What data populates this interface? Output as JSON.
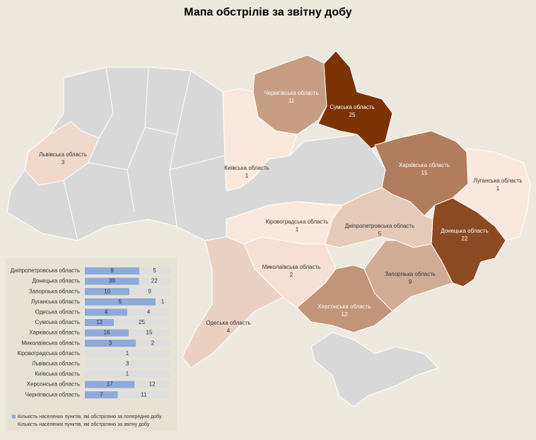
{
  "title": "Мапа обстрілів за звітну добу",
  "color_scale": [
    "#fbe8dc",
    "#7b3306"
  ],
  "regions": [
    {
      "name": "Чернігівська область",
      "value": 11
    },
    {
      "name": "Сумська область",
      "value": 25
    },
    {
      "name": "Харківська область",
      "value": 15
    },
    {
      "name": "Луганська область",
      "value": 1
    },
    {
      "name": "Донецька область",
      "value": 22
    },
    {
      "name": "Дніпропетровська область",
      "value": 5
    },
    {
      "name": "Запорізька область",
      "value": 9
    },
    {
      "name": "Херсонська область",
      "value": 12
    },
    {
      "name": "Миколаївська область",
      "value": 2
    },
    {
      "name": "Одеська область",
      "value": 4
    },
    {
      "name": "Кіровоградська область",
      "value": 1
    },
    {
      "name": "Київська область",
      "value": 1
    },
    {
      "name": "Львівська область",
      "value": 3
    }
  ],
  "chart_data": {
    "type": "bar",
    "orientation": "horizontal",
    "stacking": "percent",
    "categories": [
      "Дніпропетровська область",
      "Донецька область",
      "Запорізька область",
      "Луганська область",
      "Одеська область",
      "Сумська область",
      "Харківська область",
      "Миколаївська область",
      "Кіровоградська область",
      "Львівська область",
      "Київська область",
      "Херсонська область",
      "Чернігівська область"
    ],
    "series": [
      {
        "name": "Кількість населених пунктів, які обстріляно за попередню добу",
        "color": "#8ea9db",
        "values": [
          9,
          39,
          10,
          5,
          4,
          13,
          16,
          3,
          null,
          null,
          null,
          17,
          7
        ]
      },
      {
        "name": "Кількість населених пунктів, які обстріляно за звітну добу",
        "color": "#dedede",
        "values": [
          5,
          22,
          9,
          1,
          4,
          25,
          15,
          2,
          1,
          3,
          1,
          12,
          11
        ]
      }
    ]
  }
}
